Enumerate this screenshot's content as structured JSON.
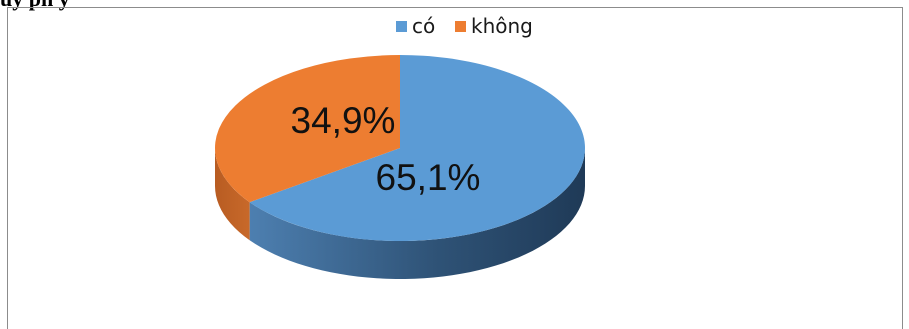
{
  "chart_data": {
    "type": "pie",
    "title": "",
    "categories": [
      "có",
      "không"
    ],
    "values": [
      65.1,
      34.9
    ],
    "data_labels": [
      "65,1%",
      "34,9%"
    ],
    "colors": [
      "#5b9bd5",
      "#ed7d31"
    ],
    "three_d": true,
    "legend_position": "top"
  },
  "caption_partial": "ủy ph y"
}
